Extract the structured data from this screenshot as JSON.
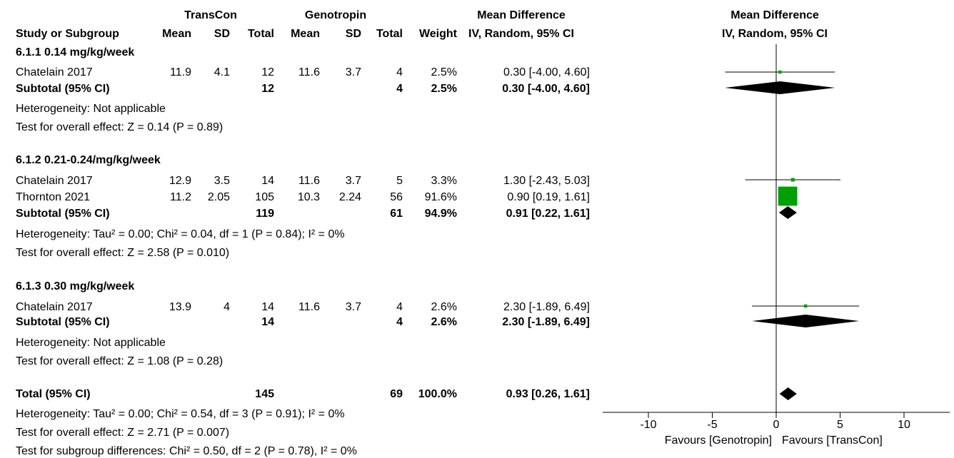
{
  "header": {
    "group_exp": "TransCon",
    "group_ctl": "Genotropin",
    "md_label": "Mean Difference",
    "study_col": "Study or Subgroup",
    "mean": "Mean",
    "sd": "SD",
    "total": "Total",
    "weight": "Weight",
    "method": "IV, Random, 95% CI",
    "plot_title": "Mean Difference",
    "plot_method": "IV, Random, 95% CI"
  },
  "subgroups": [
    {
      "title": "6.1.1 0.14 mg/kg/week",
      "studies": [
        {
          "name": "Chatelain 2017",
          "e_mean": "11.9",
          "e_sd": "4.1",
          "e_n": "12",
          "c_mean": "11.6",
          "c_sd": "3.7",
          "c_n": "4",
          "weight": "2.5%",
          "ci": "0.30 [-4.00, 4.60]"
        }
      ],
      "subtotal": {
        "label": "Subtotal (95% CI)",
        "e_n": "12",
        "c_n": "4",
        "weight": "2.5%",
        "ci": "0.30 [-4.00, 4.60]"
      },
      "heterogeneity": "Heterogeneity: Not applicable",
      "overall": "Test for overall effect: Z = 0.14 (P = 0.89)"
    },
    {
      "title": "6.1.2 0.21-0.24/mg/kg/week",
      "studies": [
        {
          "name": "Chatelain 2017",
          "e_mean": "12.9",
          "e_sd": "3.5",
          "e_n": "14",
          "c_mean": "11.6",
          "c_sd": "3.7",
          "c_n": "5",
          "weight": "3.3%",
          "ci": "1.30 [-2.43, 5.03]"
        },
        {
          "name": "Thornton 2021",
          "e_mean": "11.2",
          "e_sd": "2.05",
          "e_n": "105",
          "c_mean": "10.3",
          "c_sd": "2.24",
          "c_n": "56",
          "weight": "91.6%",
          "ci": "0.90 [0.19, 1.61]"
        }
      ],
      "subtotal": {
        "label": "Subtotal (95% CI)",
        "e_n": "119",
        "c_n": "61",
        "weight": "94.9%",
        "ci": "0.91 [0.22, 1.61]"
      },
      "heterogeneity": "Heterogeneity: Tau² = 0.00; Chi² = 0.04, df = 1 (P = 0.84); I² = 0%",
      "overall": "Test for overall effect: Z = 2.58 (P = 0.010)"
    },
    {
      "title": "6.1.3 0.30 mg/kg/week",
      "studies": [
        {
          "name": "Chatelain 2017",
          "e_mean": "13.9",
          "e_sd": "4",
          "e_n": "14",
          "c_mean": "11.6",
          "c_sd": "3.7",
          "c_n": "4",
          "weight": "2.6%",
          "ci": "2.30 [-1.89, 6.49]"
        }
      ],
      "subtotal": {
        "label": "Subtotal (95% CI)",
        "e_n": "14",
        "c_n": "4",
        "weight": "2.6%",
        "ci": "2.30 [-1.89, 6.49]"
      },
      "heterogeneity": "Heterogeneity: Not applicable",
      "overall": "Test for overall effect: Z = 1.08 (P = 0.28)"
    }
  ],
  "total": {
    "label": "Total (95% CI)",
    "e_n": "145",
    "c_n": "69",
    "weight": "100.0%",
    "ci": "0.93 [0.26, 1.61]",
    "heterogeneity": "Heterogeneity: Tau² = 0.00; Chi² = 0.54, df = 3 (P = 0.91); I² = 0%",
    "overall": "Test for overall effect: Z = 2.71 (P = 0.007)",
    "subgroup_diff": "Test for subgroup differences: Chi² = 0.50, df = 2 (P = 0.78), I² = 0%"
  },
  "colors": {
    "study_box": "#00a000",
    "diamond": "#000000",
    "line": "#000000"
  },
  "chart_data": {
    "type": "forest",
    "title": "Mean Difference",
    "subtitle": "IV, Random, 95% CI",
    "xlim": [
      -10,
      10
    ],
    "xticks": [
      -10,
      -5,
      0,
      5,
      10
    ],
    "xtick_labels": [
      "-10",
      "-5",
      "0",
      "5",
      "10"
    ],
    "favours_left": "Favours [Genotropin]",
    "favours_right": "Favours [TransCon]",
    "studies": [
      {
        "subgroup": 0,
        "name": "Chatelain 2017",
        "md": 0.3,
        "lo": -4.0,
        "hi": 4.6,
        "weight": 2.5
      },
      {
        "subgroup": 1,
        "name": "Chatelain 2017",
        "md": 1.3,
        "lo": -2.43,
        "hi": 5.03,
        "weight": 3.3
      },
      {
        "subgroup": 1,
        "name": "Thornton 2021",
        "md": 0.9,
        "lo": 0.19,
        "hi": 1.61,
        "weight": 91.6
      },
      {
        "subgroup": 2,
        "name": "Chatelain 2017",
        "md": 2.3,
        "lo": -1.89,
        "hi": 6.49,
        "weight": 2.6
      }
    ],
    "subtotals": [
      {
        "subgroup": 0,
        "md": 0.3,
        "lo": -4.0,
        "hi": 4.6
      },
      {
        "subgroup": 1,
        "md": 0.91,
        "lo": 0.22,
        "hi": 1.61
      },
      {
        "subgroup": 2,
        "md": 2.3,
        "lo": -1.89,
        "hi": 6.49
      }
    ],
    "overall": {
      "md": 0.93,
      "lo": 0.26,
      "hi": 1.61
    }
  }
}
